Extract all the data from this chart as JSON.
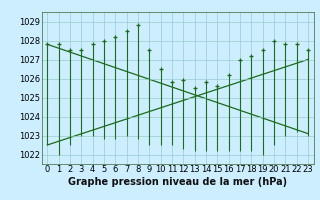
{
  "xlabel": "Graphe pression niveau de la mer (hPa)",
  "hours": [
    0,
    1,
    2,
    3,
    4,
    5,
    6,
    7,
    8,
    9,
    10,
    11,
    12,
    13,
    14,
    15,
    16,
    17,
    18,
    19,
    20,
    21,
    22,
    23
  ],
  "pressure_main": [
    1027.8,
    1027.8,
    1027.5,
    1027.5,
    1027.8,
    1028.0,
    1028.2,
    1028.5,
    1028.8,
    1027.5,
    1026.5,
    1025.8,
    1025.9,
    1025.5,
    1025.8,
    1025.6,
    1026.2,
    1027.0,
    1027.2,
    1027.5,
    1028.0,
    1027.8,
    1027.8,
    1027.5
  ],
  "pressure_min": [
    1022.5,
    1022.0,
    1022.5,
    1023.0,
    1023.0,
    1022.8,
    1022.8,
    1023.0,
    1022.8,
    1022.5,
    1022.5,
    1022.5,
    1022.3,
    1022.2,
    1022.2,
    1022.2,
    1022.2,
    1022.2,
    1022.2,
    1022.0,
    1022.5,
    1023.0,
    1023.2,
    1023.0
  ],
  "trend1_x": [
    0,
    23
  ],
  "trend1_y": [
    1027.8,
    1023.1
  ],
  "trend2_x": [
    0,
    23
  ],
  "trend2_y": [
    1022.5,
    1027.0
  ],
  "ylim": [
    1021.5,
    1029.5
  ],
  "xlim": [
    -0.5,
    23.5
  ],
  "yticks": [
    1022,
    1023,
    1024,
    1025,
    1026,
    1027,
    1028,
    1029
  ],
  "bg_color": "#cceeff",
  "grid_color": "#99cccc",
  "line_color": "#1a6b1a",
  "marker_color": "#1a6b1a",
  "xlabel_fontsize": 7,
  "tick_fontsize": 6
}
